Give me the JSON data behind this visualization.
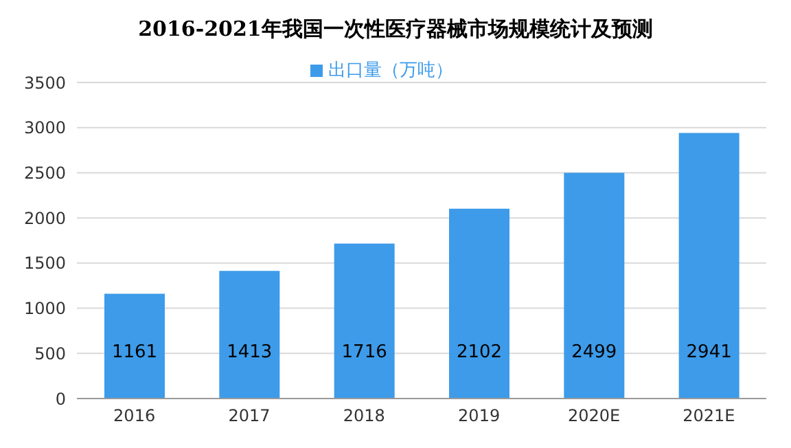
{
  "chart_data": {
    "type": "bar",
    "title": "2016-2021年我国一次性医疗器械市场规模统计及预测",
    "categories": [
      "2016",
      "2017",
      "2018",
      "2019",
      "2020E",
      "2021E"
    ],
    "series": [
      {
        "name": "出口量（万吨）",
        "color": "#3d9be9",
        "values": [
          1161,
          1413,
          1716,
          2102,
          2499,
          2941
        ]
      }
    ],
    "ylim": [
      0,
      3500
    ],
    "yticks": [
      0,
      500,
      1000,
      1500,
      2000,
      2500,
      3000,
      3500
    ],
    "grid": "y",
    "legend": "top",
    "data_labels": true
  }
}
